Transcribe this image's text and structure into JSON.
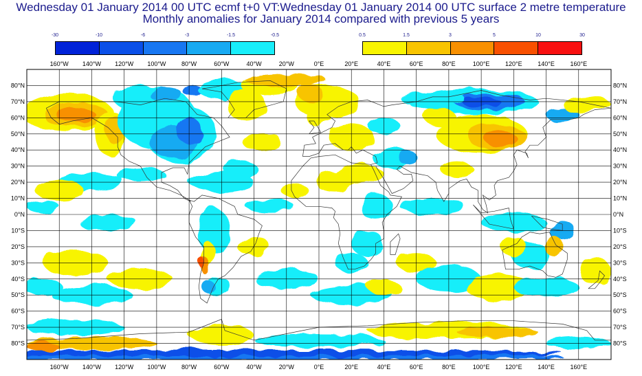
{
  "title": {
    "line1": "Wednesday 01 January 2014 00 UTC ecmf t+0 VT:Wednesday 01 January 2014 00 UTC surface  2 metre temperature",
    "line2": "Monthly anomalies for January 2014 compared with previous 5 years"
  },
  "legend": {
    "negative": {
      "ticks": [
        "-30",
        "-10",
        "-6",
        "-3",
        "-1.5",
        "-0.5"
      ],
      "colors": [
        "#0022d8",
        "#0a4fe8",
        "#1877f2",
        "#18aaf2",
        "#18eefa"
      ]
    },
    "positive": {
      "ticks": [
        "0.5",
        "1.5",
        "3",
        "5",
        "10",
        "30"
      ],
      "colors": [
        "#f8f400",
        "#f8c400",
        "#f89000",
        "#f85000",
        "#f81010"
      ]
    }
  },
  "map": {
    "longitude_labels": [
      "160°W",
      "140°W",
      "120°W",
      "100°W",
      "80°W",
      "60°W",
      "40°W",
      "20°W",
      "0°E",
      "20°E",
      "40°E",
      "60°E",
      "80°E",
      "100°E",
      "120°E",
      "140°E",
      "160°E"
    ],
    "latitude_labels": [
      "80°N",
      "70°N",
      "60°N",
      "50°N",
      "40°N",
      "30°N",
      "20°N",
      "10°N",
      "0°N",
      "10°S",
      "20°S",
      "30°S",
      "40°S",
      "50°S",
      "60°S",
      "70°S",
      "80°S"
    ]
  }
}
